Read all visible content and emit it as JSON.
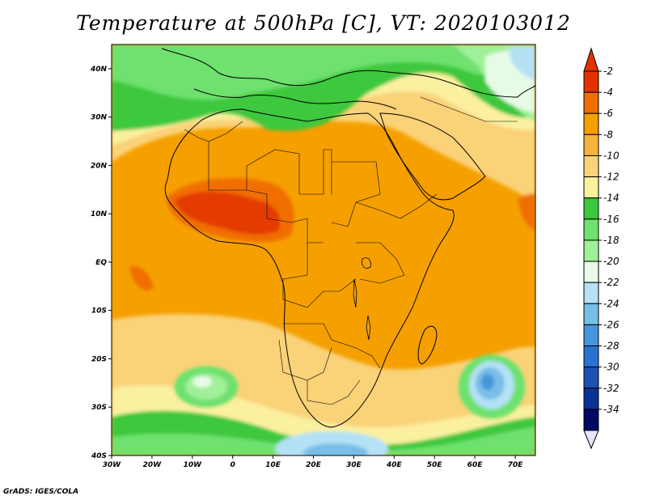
{
  "title": "Temperature at 500hPa [C], VT: 2020103012",
  "credit": "GrADS: IGES/COLA",
  "map": {
    "region": "Africa and surrounding seas",
    "lon_range": [
      -30,
      75
    ],
    "lat_range": [
      -40,
      45
    ],
    "lon_ticks": [
      {
        "value": -30,
        "label": "30W"
      },
      {
        "value": -20,
        "label": "20W"
      },
      {
        "value": -10,
        "label": "10W"
      },
      {
        "value": 0,
        "label": "0"
      },
      {
        "value": 10,
        "label": "10E"
      },
      {
        "value": 20,
        "label": "20E"
      },
      {
        "value": 30,
        "label": "30E"
      },
      {
        "value": 40,
        "label": "40E"
      },
      {
        "value": 50,
        "label": "50E"
      },
      {
        "value": 60,
        "label": "60E"
      },
      {
        "value": 70,
        "label": "70E"
      }
    ],
    "lat_ticks": [
      {
        "value": 40,
        "label": "40N"
      },
      {
        "value": 30,
        "label": "30N"
      },
      {
        "value": 20,
        "label": "20N"
      },
      {
        "value": 10,
        "label": "10N"
      },
      {
        "value": 0,
        "label": "EQ"
      },
      {
        "value": -10,
        "label": "10S"
      },
      {
        "value": -20,
        "label": "20S"
      },
      {
        "value": -30,
        "label": "30S"
      },
      {
        "value": -40,
        "label": "40S"
      }
    ]
  },
  "colorbar": {
    "levels": [
      "-2",
      "-4",
      "-6",
      "-8",
      "-10",
      "-12",
      "-14",
      "-16",
      "-18",
      "-20",
      "-22",
      "-24",
      "-26",
      "-28",
      "-30",
      "-32",
      "-34"
    ],
    "colors": [
      "#e23200",
      "#f06e00",
      "#f5a000",
      "#f5b43c",
      "#fad278",
      "#faf0a0",
      "#3cc83c",
      "#6ee16e",
      "#a0f09a",
      "#e6fae6",
      "#b4e1f5",
      "#78bee6",
      "#4696dc",
      "#2873d2",
      "#1e50b4",
      "#0a3296",
      "#000a64"
    ],
    "top_color": "#e23200",
    "bottom_color": "#e6e6ff"
  },
  "fields": {
    "cool_north": {
      "level": "-12 to -16",
      "where": "Mediterranean and North Africa"
    },
    "warm_sahel": {
      "level": "-2 to -4",
      "where": "West Africa / Sahel"
    },
    "cold_southwest": {
      "level": "-14 to -16",
      "where": "South Atlantic near 25S 15W"
    },
    "cold_southeast": {
      "level": "-20 to -26",
      "where": "Indian Ocean near 28S 62E"
    },
    "cold_south": {
      "level": "-18 to -22",
      "where": "Southern Ocean near 40S 20E"
    }
  }
}
